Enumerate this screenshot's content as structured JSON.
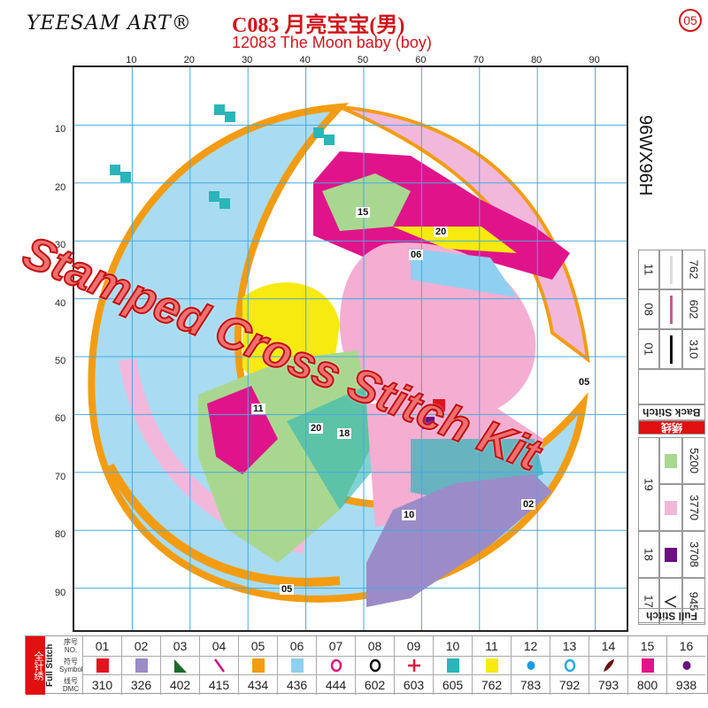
{
  "header": {
    "brand": "YEESAM ART®",
    "title": "C083 月亮宝宝(男)",
    "subtitle": "12083 The Moon baby (boy)",
    "page": "05"
  },
  "axis": {
    "x_ticks": [
      "10",
      "20",
      "30",
      "40",
      "50",
      "60",
      "70",
      "80",
      "90"
    ],
    "y_ticks": [
      "10",
      "20",
      "30",
      "40",
      "50",
      "60",
      "70",
      "80",
      "90"
    ]
  },
  "size_label": "96WX96H",
  "overlay_text": "Stamped Cross Stitch Kit",
  "pattern_labels": [
    "15",
    "20",
    "06",
    "11",
    "18",
    "20",
    "05",
    "10",
    "02",
    "05"
  ],
  "legend_full": {
    "red_label": "全针绣",
    "label": "Full Stitch",
    "header_no": "序号 NO.",
    "header_symbol": "符号 Symbol",
    "header_dmc": "线号 DMC",
    "items": [
      {
        "no": "01",
        "dmc": "310",
        "color": "#e0141e",
        "icon": "square"
      },
      {
        "no": "02",
        "dmc": "326",
        "color": "#9b8cc8",
        "icon": "square"
      },
      {
        "no": "03",
        "dmc": "402",
        "color": "#1c6a2c",
        "icon": "triangle"
      },
      {
        "no": "04",
        "dmc": "415",
        "color": "#c8187a",
        "icon": "slash"
      },
      {
        "no": "05",
        "dmc": "434",
        "color": "#f39c12",
        "icon": "square"
      },
      {
        "no": "06",
        "dmc": "436",
        "color": "#8fd0f0",
        "icon": "square"
      },
      {
        "no": "07",
        "dmc": "444",
        "color": "#d81b7a",
        "icon": "ring"
      },
      {
        "no": "08",
        "dmc": "602",
        "color": "#111111",
        "icon": "ring"
      },
      {
        "no": "09",
        "dmc": "603",
        "color": "#d81b3a",
        "icon": "plus"
      },
      {
        "no": "10",
        "dmc": "605",
        "color": "#2bb5b8",
        "icon": "square"
      },
      {
        "no": "11",
        "dmc": "762",
        "color": "#f7ea10",
        "icon": "square"
      },
      {
        "no": "12",
        "dmc": "783",
        "color": "#1a9be0",
        "icon": "dot"
      },
      {
        "no": "13",
        "dmc": "792",
        "color": "#2aa8e0",
        "icon": "ring"
      },
      {
        "no": "14",
        "dmc": "793",
        "color": "#6a1010",
        "icon": "leaf"
      },
      {
        "no": "15",
        "dmc": "800",
        "color": "#e0148a",
        "icon": "square"
      },
      {
        "no": "16",
        "dmc": "938",
        "color": "#6a1080",
        "icon": "dot"
      }
    ]
  },
  "legend_right_full": {
    "label": "Full Stitch",
    "items": [
      {
        "no": "17",
        "dmc": "945",
        "icon": "chevron",
        "color": "#222222"
      },
      {
        "no": "18",
        "dmc": "3708",
        "icon": "square",
        "color": "#6a1080"
      },
      {
        "no": "19",
        "dmc": "3770",
        "icon": "square",
        "color": "#f0b8d8"
      },
      {
        "no": "19",
        "dmc": "5200",
        "icon": "square",
        "color": "#a8d890"
      }
    ]
  },
  "legend_back": {
    "red_label": "绣线",
    "label": "Back Stitch",
    "items": [
      {
        "no": "01",
        "dmc": "310",
        "color": "#111111"
      },
      {
        "no": "08",
        "dmc": "602",
        "color": "#c0608a"
      },
      {
        "no": "11",
        "dmc": "762",
        "color": "#dddddd"
      }
    ]
  },
  "colors": {
    "accent": "#d0161c",
    "grid": "#4aa8e0"
  }
}
